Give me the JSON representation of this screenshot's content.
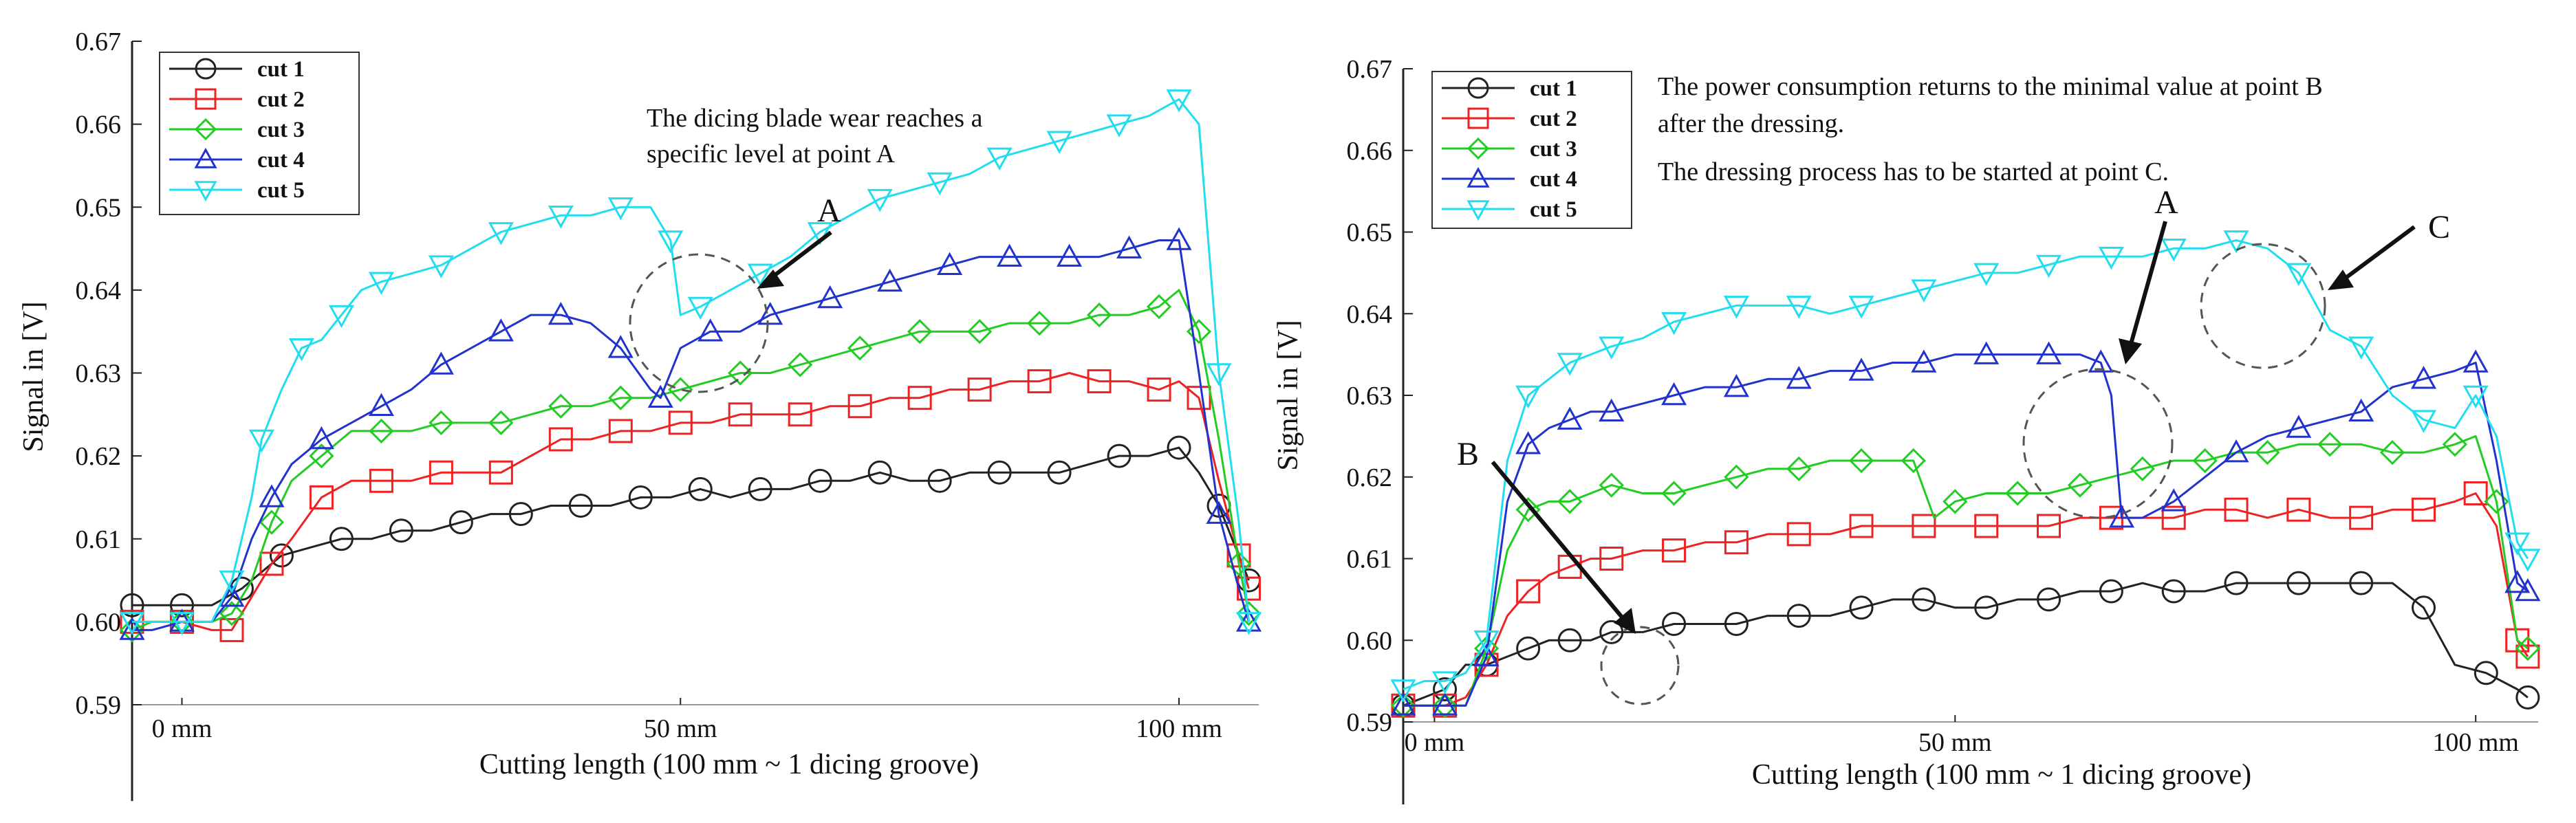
{
  "colors": {
    "cut 1": "#222222",
    "cut 2": "#ee2222",
    "cut 3": "#22cc22",
    "cut 4": "#2233cc",
    "cut 5": "#22ddee"
  },
  "markers": {
    "cut 1": "circle",
    "cut 2": "square",
    "cut 3": "diamond",
    "cut 4": "triangle-up",
    "cut 5": "triangle-down"
  },
  "chart_data": [
    {
      "type": "line",
      "xlabel": "Cutting length (100 mm ~ 1 dicing groove)",
      "ylabel": "Signal in [V]",
      "xlim": [
        -5,
        108
      ],
      "ylim": [
        0.59,
        0.67
      ],
      "x_ticks": [
        0,
        50,
        100
      ],
      "x_tick_labels": [
        "0 mm",
        "50 mm",
        "100 mm"
      ],
      "y_ticks": [
        0.59,
        0.6,
        0.61,
        0.62,
        0.63,
        0.64,
        0.65,
        0.66,
        0.67
      ],
      "y_tick_labels": [
        "0.59",
        "0.60",
        "0.61",
        "0.62",
        "0.63",
        "0.64",
        "0.65",
        "0.66",
        "0.67"
      ],
      "legend_position": "top-left",
      "grid": false,
      "annotations": [
        {
          "text": "The dicing blade wear reaches a",
          "line": 1
        },
        {
          "text": "specific level at point A",
          "line": 2
        },
        {
          "text": "A",
          "callout": true
        }
      ],
      "series": [
        {
          "name": "cut 1",
          "x": [
            -5,
            -3,
            0,
            3,
            6,
            8,
            10,
            13,
            16,
            19,
            22,
            25,
            28,
            31,
            34,
            37,
            40,
            43,
            46,
            49,
            52,
            55,
            58,
            61,
            64,
            67,
            70,
            73,
            76,
            79,
            82,
            85,
            88,
            91,
            94,
            97,
            100,
            102,
            104,
            106,
            107
          ],
          "y": [
            0.602,
            0.602,
            0.602,
            0.602,
            0.604,
            0.606,
            0.608,
            0.609,
            0.61,
            0.61,
            0.611,
            0.611,
            0.612,
            0.613,
            0.613,
            0.614,
            0.614,
            0.614,
            0.615,
            0.615,
            0.616,
            0.615,
            0.616,
            0.616,
            0.617,
            0.617,
            0.618,
            0.617,
            0.617,
            0.618,
            0.618,
            0.618,
            0.618,
            0.619,
            0.62,
            0.62,
            0.621,
            0.618,
            0.614,
            0.608,
            0.605
          ]
        },
        {
          "name": "cut 2",
          "x": [
            -5,
            -3,
            0,
            3,
            5,
            7,
            9,
            11,
            14,
            17,
            20,
            23,
            26,
            29,
            32,
            35,
            38,
            41,
            44,
            47,
            50,
            53,
            56,
            59,
            62,
            65,
            68,
            71,
            74,
            77,
            80,
            83,
            86,
            89,
            92,
            95,
            98,
            100,
            102,
            104,
            106,
            107
          ],
          "y": [
            0.6,
            0.6,
            0.6,
            0.599,
            0.599,
            0.603,
            0.607,
            0.61,
            0.615,
            0.617,
            0.617,
            0.617,
            0.618,
            0.618,
            0.618,
            0.62,
            0.622,
            0.622,
            0.623,
            0.623,
            0.624,
            0.624,
            0.625,
            0.625,
            0.625,
            0.626,
            0.626,
            0.627,
            0.627,
            0.628,
            0.628,
            0.629,
            0.629,
            0.63,
            0.629,
            0.629,
            0.628,
            0.629,
            0.627,
            0.617,
            0.608,
            0.604
          ]
        },
        {
          "name": "cut 3",
          "x": [
            -5,
            -3,
            0,
            3,
            5,
            7,
            9,
            11,
            14,
            17,
            20,
            23,
            26,
            29,
            32,
            35,
            38,
            41,
            44,
            47,
            50,
            53,
            56,
            59,
            62,
            65,
            68,
            71,
            74,
            77,
            80,
            83,
            86,
            89,
            92,
            95,
            98,
            100,
            102,
            104,
            106,
            107
          ],
          "y": [
            0.599,
            0.6,
            0.6,
            0.6,
            0.601,
            0.605,
            0.612,
            0.617,
            0.62,
            0.623,
            0.623,
            0.623,
            0.624,
            0.624,
            0.624,
            0.625,
            0.626,
            0.626,
            0.627,
            0.627,
            0.628,
            0.629,
            0.63,
            0.63,
            0.631,
            0.632,
            0.633,
            0.634,
            0.635,
            0.635,
            0.635,
            0.636,
            0.636,
            0.636,
            0.637,
            0.637,
            0.638,
            0.64,
            0.635,
            0.622,
            0.607,
            0.601
          ]
        },
        {
          "name": "cut 4",
          "x": [
            -5,
            -3,
            0,
            3,
            5,
            7,
            9,
            11,
            14,
            17,
            20,
            23,
            26,
            29,
            32,
            35,
            38,
            41,
            44,
            47,
            48,
            50,
            53,
            56,
            59,
            62,
            65,
            68,
            71,
            74,
            77,
            80,
            83,
            86,
            89,
            92,
            95,
            98,
            100,
            102,
            104,
            106,
            107
          ],
          "y": [
            0.599,
            0.599,
            0.6,
            0.6,
            0.603,
            0.61,
            0.615,
            0.619,
            0.622,
            0.624,
            0.626,
            0.628,
            0.631,
            0.633,
            0.635,
            0.637,
            0.637,
            0.636,
            0.633,
            0.628,
            0.627,
            0.633,
            0.635,
            0.635,
            0.637,
            0.638,
            0.639,
            0.64,
            0.641,
            0.642,
            0.643,
            0.644,
            0.644,
            0.644,
            0.644,
            0.644,
            0.645,
            0.646,
            0.646,
            0.63,
            0.613,
            0.604,
            0.6
          ]
        },
        {
          "name": "cut 5",
          "x": [
            -5,
            -3,
            0,
            3,
            5,
            7,
            8,
            10,
            12,
            14,
            16,
            18,
            20,
            23,
            26,
            29,
            32,
            35,
            38,
            41,
            44,
            47,
            49,
            50,
            52,
            55,
            58,
            61,
            64,
            67,
            70,
            73,
            76,
            79,
            82,
            85,
            88,
            91,
            94,
            97,
            100,
            102,
            104,
            106,
            107
          ],
          "y": [
            0.6,
            0.6,
            0.6,
            0.6,
            0.605,
            0.615,
            0.622,
            0.628,
            0.633,
            0.634,
            0.637,
            0.64,
            0.641,
            0.642,
            0.643,
            0.645,
            0.647,
            0.648,
            0.649,
            0.649,
            0.65,
            0.65,
            0.646,
            0.637,
            0.638,
            0.64,
            0.642,
            0.644,
            0.647,
            0.649,
            0.651,
            0.652,
            0.653,
            0.654,
            0.656,
            0.657,
            0.658,
            0.659,
            0.66,
            0.661,
            0.663,
            0.66,
            0.63,
            0.612,
            0.6
          ]
        }
      ]
    },
    {
      "type": "line",
      "xlabel": "Cutting length (100 mm ~ 1 dicing groove)",
      "ylabel": "Signal in [V]",
      "xlim": [
        -3,
        106
      ],
      "ylim": [
        0.59,
        0.67
      ],
      "x_ticks": [
        0,
        50,
        100
      ],
      "x_tick_labels": [
        "0 mm",
        "50 mm",
        "100 mm"
      ],
      "y_ticks": [
        0.59,
        0.6,
        0.61,
        0.62,
        0.63,
        0.64,
        0.65,
        0.66,
        0.67
      ],
      "y_tick_labels": [
        "0.59",
        "0.60",
        "0.61",
        "0.62",
        "0.63",
        "0.64",
        "0.65",
        "0.66",
        "0.67"
      ],
      "legend_position": "top-left",
      "grid": false,
      "annotations": [
        {
          "text": "The power consumption returns to the minimal value at point B",
          "line": 1
        },
        {
          "text": "after the dressing.",
          "line": 2
        },
        {
          "text": "The dressing process has to be started at point C.",
          "line": 3
        },
        {
          "text": "A",
          "callout": true
        },
        {
          "text": "B",
          "callout": true
        },
        {
          "text": "C",
          "callout": true
        }
      ],
      "series": [
        {
          "name": "cut 1",
          "x": [
            -3,
            -1,
            1,
            3,
            5,
            7,
            9,
            11,
            13,
            15,
            17,
            20,
            23,
            26,
            29,
            32,
            35,
            38,
            41,
            44,
            47,
            50,
            53,
            56,
            59,
            62,
            65,
            68,
            71,
            74,
            77,
            80,
            83,
            86,
            89,
            92,
            95,
            98,
            101,
            104,
            105
          ],
          "y": [
            0.592,
            0.593,
            0.594,
            0.597,
            0.597,
            0.598,
            0.599,
            0.6,
            0.6,
            0.6,
            0.601,
            0.601,
            0.602,
            0.602,
            0.602,
            0.603,
            0.603,
            0.603,
            0.604,
            0.605,
            0.605,
            0.604,
            0.604,
            0.605,
            0.605,
            0.606,
            0.606,
            0.607,
            0.606,
            0.606,
            0.607,
            0.607,
            0.607,
            0.607,
            0.607,
            0.607,
            0.604,
            0.597,
            0.596,
            0.594,
            0.593
          ]
        },
        {
          "name": "cut 2",
          "x": [
            -3,
            -1,
            1,
            3,
            5,
            7,
            9,
            11,
            13,
            15,
            17,
            20,
            23,
            26,
            29,
            32,
            35,
            38,
            41,
            44,
            47,
            50,
            53,
            56,
            59,
            62,
            65,
            68,
            71,
            74,
            77,
            80,
            83,
            86,
            89,
            92,
            95,
            98,
            100,
            102,
            104,
            105
          ],
          "y": [
            0.592,
            0.592,
            0.592,
            0.593,
            0.597,
            0.603,
            0.606,
            0.608,
            0.609,
            0.61,
            0.61,
            0.611,
            0.611,
            0.612,
            0.612,
            0.613,
            0.613,
            0.613,
            0.614,
            0.614,
            0.614,
            0.614,
            0.614,
            0.614,
            0.614,
            0.615,
            0.615,
            0.615,
            0.615,
            0.616,
            0.616,
            0.615,
            0.616,
            0.615,
            0.615,
            0.616,
            0.616,
            0.617,
            0.618,
            0.614,
            0.6,
            0.598
          ]
        },
        {
          "name": "cut 3",
          "x": [
            -3,
            -1,
            1,
            3,
            5,
            7,
            9,
            11,
            13,
            15,
            17,
            20,
            23,
            26,
            29,
            32,
            35,
            38,
            41,
            44,
            46,
            48,
            50,
            53,
            56,
            59,
            62,
            65,
            68,
            71,
            74,
            77,
            80,
            83,
            86,
            89,
            92,
            95,
            98,
            100,
            102,
            104,
            105
          ],
          "y": [
            0.592,
            0.592,
            0.592,
            0.592,
            0.599,
            0.611,
            0.616,
            0.617,
            0.617,
            0.618,
            0.619,
            0.618,
            0.618,
            0.619,
            0.62,
            0.621,
            0.621,
            0.622,
            0.622,
            0.622,
            0.622,
            0.615,
            0.617,
            0.618,
            0.618,
            0.618,
            0.619,
            0.62,
            0.621,
            0.622,
            0.622,
            0.623,
            0.623,
            0.624,
            0.624,
            0.624,
            0.623,
            0.623,
            0.624,
            0.625,
            0.617,
            0.6,
            0.599
          ]
        },
        {
          "name": "cut 4",
          "x": [
            -3,
            -1,
            1,
            3,
            5,
            7,
            9,
            11,
            13,
            15,
            17,
            20,
            23,
            26,
            29,
            32,
            35,
            38,
            41,
            44,
            47,
            50,
            53,
            56,
            59,
            62,
            64,
            65,
            66,
            68,
            71,
            74,
            77,
            80,
            83,
            86,
            89,
            92,
            95,
            98,
            100,
            102,
            104,
            105
          ],
          "y": [
            0.592,
            0.592,
            0.592,
            0.592,
            0.598,
            0.617,
            0.624,
            0.626,
            0.627,
            0.628,
            0.628,
            0.629,
            0.63,
            0.631,
            0.631,
            0.632,
            0.632,
            0.633,
            0.633,
            0.634,
            0.634,
            0.635,
            0.635,
            0.635,
            0.635,
            0.635,
            0.634,
            0.63,
            0.615,
            0.615,
            0.617,
            0.62,
            0.623,
            0.625,
            0.626,
            0.627,
            0.628,
            0.631,
            0.632,
            0.633,
            0.634,
            0.622,
            0.607,
            0.606
          ]
        },
        {
          "name": "cut 5",
          "x": [
            -3,
            -1,
            1,
            3,
            5,
            7,
            9,
            11,
            13,
            15,
            17,
            20,
            23,
            26,
            29,
            32,
            35,
            38,
            41,
            44,
            47,
            50,
            53,
            56,
            59,
            62,
            65,
            68,
            71,
            74,
            77,
            80,
            83,
            86,
            89,
            92,
            95,
            98,
            100,
            102,
            104,
            105
          ],
          "y": [
            0.594,
            0.595,
            0.595,
            0.596,
            0.6,
            0.622,
            0.63,
            0.632,
            0.634,
            0.635,
            0.636,
            0.637,
            0.639,
            0.64,
            0.641,
            0.641,
            0.641,
            0.64,
            0.641,
            0.642,
            0.643,
            0.644,
            0.645,
            0.645,
            0.646,
            0.647,
            0.647,
            0.647,
            0.648,
            0.648,
            0.649,
            0.648,
            0.645,
            0.638,
            0.636,
            0.63,
            0.627,
            0.626,
            0.63,
            0.625,
            0.612,
            0.61
          ]
        }
      ]
    }
  ]
}
